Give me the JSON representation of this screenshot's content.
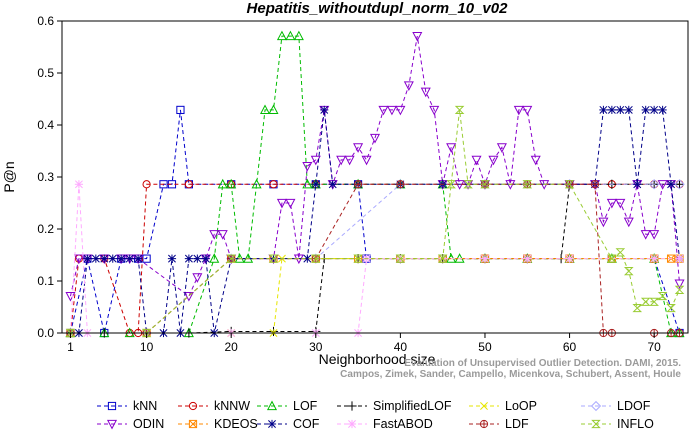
{
  "chart_data": {
    "type": "line",
    "title": "Hepatitis_withoutdupl_norm_10_v02",
    "xlabel": "Neighborhood size",
    "ylabel": "P@n",
    "xlim": [
      0,
      74
    ],
    "ylim": [
      0,
      0.6
    ],
    "xticks": [
      1,
      10,
      20,
      30,
      40,
      50,
      60,
      70
    ],
    "yticks": [
      0.0,
      0.1,
      0.2,
      0.3,
      0.4,
      0.5,
      0.6
    ],
    "grid": false,
    "legend_position": "bottom",
    "credit": [
      "Evaluation of Unsupervised Outlier Detection. DAMI, 2015.",
      "Campos, Zimek, Sander, Campello, Micenkova, Schubert, Assent, Houle"
    ],
    "series": [
      {
        "name": "kNN",
        "color": "#0000cc",
        "marker": "square",
        "points": [
          [
            1,
            0
          ],
          [
            3,
            0.143
          ],
          [
            5,
            0
          ],
          [
            7,
            0.143
          ],
          [
            9,
            0.143
          ],
          [
            10,
            0.143
          ],
          [
            12,
            0.286
          ],
          [
            13,
            0.286
          ],
          [
            14,
            0.429
          ],
          [
            15,
            0.286
          ],
          [
            20,
            0.286
          ],
          [
            25,
            0.286
          ],
          [
            30,
            0.286
          ],
          [
            35,
            0.286
          ],
          [
            36,
            0.143
          ],
          [
            40,
            0.143
          ],
          [
            45,
            0.143
          ],
          [
            50,
            0.143
          ],
          [
            55,
            0.143
          ],
          [
            60,
            0.143
          ],
          [
            65,
            0.143
          ],
          [
            70,
            0.143
          ],
          [
            73,
            0
          ]
        ]
      },
      {
        "name": "kNNW",
        "color": "#cc0000",
        "marker": "circle",
        "points": [
          [
            1,
            0
          ],
          [
            2,
            0.143
          ],
          [
            5,
            0.143
          ],
          [
            8,
            0
          ],
          [
            9,
            0
          ],
          [
            10,
            0.286
          ],
          [
            15,
            0.286
          ],
          [
            20,
            0.286
          ],
          [
            25,
            0.286
          ],
          [
            30,
            0.286
          ],
          [
            40,
            0.286
          ],
          [
            50,
            0.286
          ],
          [
            60,
            0.286
          ],
          [
            65,
            0.286
          ],
          [
            70,
            0.286
          ],
          [
            73,
            0.286
          ]
        ]
      },
      {
        "name": "LOF",
        "color": "#00bb00",
        "marker": "triangle-up",
        "points": [
          [
            1,
            0
          ],
          [
            5,
            0
          ],
          [
            8,
            0
          ],
          [
            15,
            0
          ],
          [
            18,
            0.143
          ],
          [
            19,
            0.286
          ],
          [
            20,
            0.286
          ],
          [
            21,
            0.143
          ],
          [
            22,
            0.143
          ],
          [
            23,
            0.286
          ],
          [
            24,
            0.429
          ],
          [
            25,
            0.429
          ],
          [
            26,
            0.571
          ],
          [
            27,
            0.571
          ],
          [
            28,
            0.571
          ],
          [
            29,
            0.286
          ],
          [
            30,
            0.286
          ],
          [
            35,
            0.286
          ],
          [
            40,
            0.286
          ],
          [
            45,
            0.286
          ],
          [
            46,
            0.143
          ],
          [
            47,
            0.143
          ],
          [
            50,
            0.143
          ],
          [
            55,
            0.143
          ],
          [
            60,
            0.143
          ],
          [
            65,
            0.143
          ],
          [
            70,
            0.143
          ],
          [
            72,
            0
          ],
          [
            73,
            0
          ]
        ]
      },
      {
        "name": "SimplifiedLOF",
        "color": "#000000",
        "marker": "plus",
        "points": [
          [
            1,
            0
          ],
          [
            5,
            0
          ],
          [
            10,
            0
          ],
          [
            15,
            0
          ],
          [
            20,
            0.003
          ],
          [
            25,
            0.003
          ],
          [
            30,
            0.003
          ],
          [
            31,
            0.143
          ],
          [
            35,
            0.143
          ],
          [
            40,
            0.143
          ],
          [
            45,
            0.143
          ],
          [
            50,
            0.143
          ],
          [
            55,
            0.143
          ],
          [
            59,
            0.143
          ],
          [
            60,
            0.286
          ],
          [
            65,
            0.286
          ],
          [
            70,
            0.286
          ],
          [
            73,
            0.286
          ]
        ]
      },
      {
        "name": "LoOP",
        "color": "#e6e600",
        "marker": "x",
        "points": [
          [
            1,
            0
          ],
          [
            10,
            0
          ],
          [
            20,
            0
          ],
          [
            25,
            0
          ],
          [
            26,
            0.143
          ],
          [
            30,
            0.143
          ],
          [
            35,
            0.143
          ],
          [
            40,
            0.143
          ],
          [
            45,
            0.143
          ],
          [
            50,
            0.143
          ],
          [
            55,
            0.143
          ],
          [
            60,
            0.143
          ],
          [
            65,
            0.143
          ],
          [
            70,
            0.143
          ],
          [
            73,
            0.143
          ]
        ]
      },
      {
        "name": "LDOF",
        "color": "#aaaaff",
        "marker": "diamond",
        "points": [
          [
            1,
            0
          ],
          [
            10,
            0
          ],
          [
            20,
            0.143
          ],
          [
            30,
            0.143
          ],
          [
            40,
            0.286
          ],
          [
            50,
            0.286
          ],
          [
            60,
            0.286
          ],
          [
            70,
            0.286
          ],
          [
            73,
            0.286
          ]
        ]
      },
      {
        "name": "ODIN",
        "color": "#8800cc",
        "marker": "triangle-down",
        "points": [
          [
            1,
            0.071
          ],
          [
            2,
            0.143
          ],
          [
            3,
            0.143
          ],
          [
            5,
            0.143
          ],
          [
            7,
            0.143
          ],
          [
            8,
            0.143
          ],
          [
            9,
            0.143
          ],
          [
            15,
            0.071
          ],
          [
            16,
            0.107
          ],
          [
            17,
            0.143
          ],
          [
            18,
            0.19
          ],
          [
            19,
            0.19
          ],
          [
            20,
            0.143
          ],
          [
            25,
            0.143
          ],
          [
            26,
            0.25
          ],
          [
            27,
            0.25
          ],
          [
            28,
            0.143
          ],
          [
            29,
            0.321
          ],
          [
            30,
            0.333
          ],
          [
            31,
            0.429
          ],
          [
            32,
            0.286
          ],
          [
            33,
            0.333
          ],
          [
            34,
            0.333
          ],
          [
            35,
            0.357
          ],
          [
            36,
            0.333
          ],
          [
            37,
            0.375
          ],
          [
            38,
            0.429
          ],
          [
            39,
            0.429
          ],
          [
            40,
            0.429
          ],
          [
            41,
            0.476
          ],
          [
            42,
            0.571
          ],
          [
            43,
            0.464
          ],
          [
            44,
            0.429
          ],
          [
            45,
            0.286
          ],
          [
            46,
            0.357
          ],
          [
            47,
            0.286
          ],
          [
            48,
            0.286
          ],
          [
            49,
            0.333
          ],
          [
            50,
            0.286
          ],
          [
            51,
            0.333
          ],
          [
            52,
            0.357
          ],
          [
            53,
            0.286
          ],
          [
            54,
            0.429
          ],
          [
            55,
            0.429
          ],
          [
            56,
            0.333
          ],
          [
            57,
            0.286
          ],
          [
            60,
            0.286
          ],
          [
            63,
            0.286
          ],
          [
            64,
            0.214
          ],
          [
            65,
            0.25
          ],
          [
            66,
            0.25
          ],
          [
            67,
            0.214
          ],
          [
            68,
            0.286
          ],
          [
            69,
            0.19
          ],
          [
            70,
            0.19
          ],
          [
            71,
            0.286
          ],
          [
            72,
            0.286
          ],
          [
            73,
            0.095
          ]
        ]
      },
      {
        "name": "KDEOS",
        "color": "#ff8800",
        "marker": "square-x",
        "points": [
          [
            1,
            0
          ],
          [
            10,
            0
          ],
          [
            20,
            0.143
          ],
          [
            25,
            0.143
          ],
          [
            30,
            0.143
          ],
          [
            35,
            0.143
          ],
          [
            40,
            0.143
          ],
          [
            45,
            0.143
          ],
          [
            50,
            0.143
          ],
          [
            55,
            0.143
          ],
          [
            60,
            0.143
          ],
          [
            65,
            0.143
          ],
          [
            70,
            0.143
          ],
          [
            72,
            0.143
          ],
          [
            73,
            0.143
          ]
        ]
      },
      {
        "name": "COF",
        "color": "#000088",
        "marker": "asterisk",
        "points": [
          [
            1,
            0
          ],
          [
            2,
            0
          ],
          [
            3,
            0.143
          ],
          [
            4,
            0.143
          ],
          [
            5,
            0.143
          ],
          [
            6,
            0.143
          ],
          [
            7,
            0.143
          ],
          [
            8,
            0.143
          ],
          [
            9,
            0.143
          ],
          [
            10,
            0
          ],
          [
            12,
            0
          ],
          [
            13,
            0.143
          ],
          [
            14,
            0
          ],
          [
            15,
            0.143
          ],
          [
            16,
            0.143
          ],
          [
            17,
            0.143
          ],
          [
            18,
            0
          ],
          [
            20,
            0.143
          ],
          [
            25,
            0.143
          ],
          [
            29,
            0.143
          ],
          [
            30,
            0.286
          ],
          [
            31,
            0.429
          ],
          [
            32,
            0.286
          ],
          [
            35,
            0.286
          ],
          [
            40,
            0.286
          ],
          [
            45,
            0.286
          ],
          [
            50,
            0.286
          ],
          [
            55,
            0.286
          ],
          [
            60,
            0.286
          ],
          [
            63,
            0.286
          ],
          [
            64,
            0.429
          ],
          [
            65,
            0.429
          ],
          [
            66,
            0.429
          ],
          [
            67,
            0.429
          ],
          [
            68,
            0.286
          ],
          [
            69,
            0.429
          ],
          [
            70,
            0.429
          ],
          [
            71,
            0.429
          ],
          [
            72,
            0.286
          ],
          [
            73,
            0.143
          ]
        ]
      },
      {
        "name": "FastABOD",
        "color": "#ffaaff",
        "marker": "star",
        "points": [
          [
            1,
            0
          ],
          [
            2,
            0.286
          ],
          [
            3,
            0
          ],
          [
            10,
            0
          ],
          [
            20,
            0
          ],
          [
            30,
            0
          ],
          [
            35,
            0
          ],
          [
            36,
            0.143
          ],
          [
            40,
            0.143
          ],
          [
            50,
            0.143
          ],
          [
            55,
            0.143
          ],
          [
            60,
            0.143
          ],
          [
            70,
            0.143
          ],
          [
            73,
            0.143
          ]
        ]
      },
      {
        "name": "LDF",
        "color": "#aa2222",
        "marker": "circle-plus",
        "points": [
          [
            1,
            0
          ],
          [
            10,
            0
          ],
          [
            20,
            0.143
          ],
          [
            30,
            0.143
          ],
          [
            35,
            0.286
          ],
          [
            40,
            0.286
          ],
          [
            50,
            0.286
          ],
          [
            55,
            0.286
          ],
          [
            60,
            0.286
          ],
          [
            63,
            0.286
          ],
          [
            64,
            0
          ],
          [
            65,
            0
          ],
          [
            70,
            0
          ],
          [
            72,
            0
          ],
          [
            73,
            0
          ]
        ]
      },
      {
        "name": "INFLO",
        "color": "#99cc33",
        "marker": "hourglass",
        "points": [
          [
            1,
            0
          ],
          [
            10,
            0
          ],
          [
            20,
            0.143
          ],
          [
            25,
            0.143
          ],
          [
            30,
            0.143
          ],
          [
            35,
            0.143
          ],
          [
            40,
            0.143
          ],
          [
            45,
            0.143
          ],
          [
            46,
            0.286
          ],
          [
            47,
            0.429
          ],
          [
            48,
            0.286
          ],
          [
            50,
            0.286
          ],
          [
            55,
            0.286
          ],
          [
            60,
            0.286
          ],
          [
            65,
            0.143
          ],
          [
            66,
            0.155
          ],
          [
            67,
            0.119
          ],
          [
            68,
            0.048
          ],
          [
            69,
            0.06
          ],
          [
            70,
            0.06
          ],
          [
            71,
            0.071
          ],
          [
            72,
            0.048
          ],
          [
            73,
            0.083
          ]
        ]
      }
    ],
    "legend_layout": [
      [
        "kNN",
        "kNNW",
        "LOF",
        "SimplifiedLOF",
        "LoOP",
        "LDOF"
      ],
      [
        "ODIN",
        "KDEOS",
        "COF",
        "FastABOD",
        "LDF",
        "INFLO"
      ]
    ]
  }
}
